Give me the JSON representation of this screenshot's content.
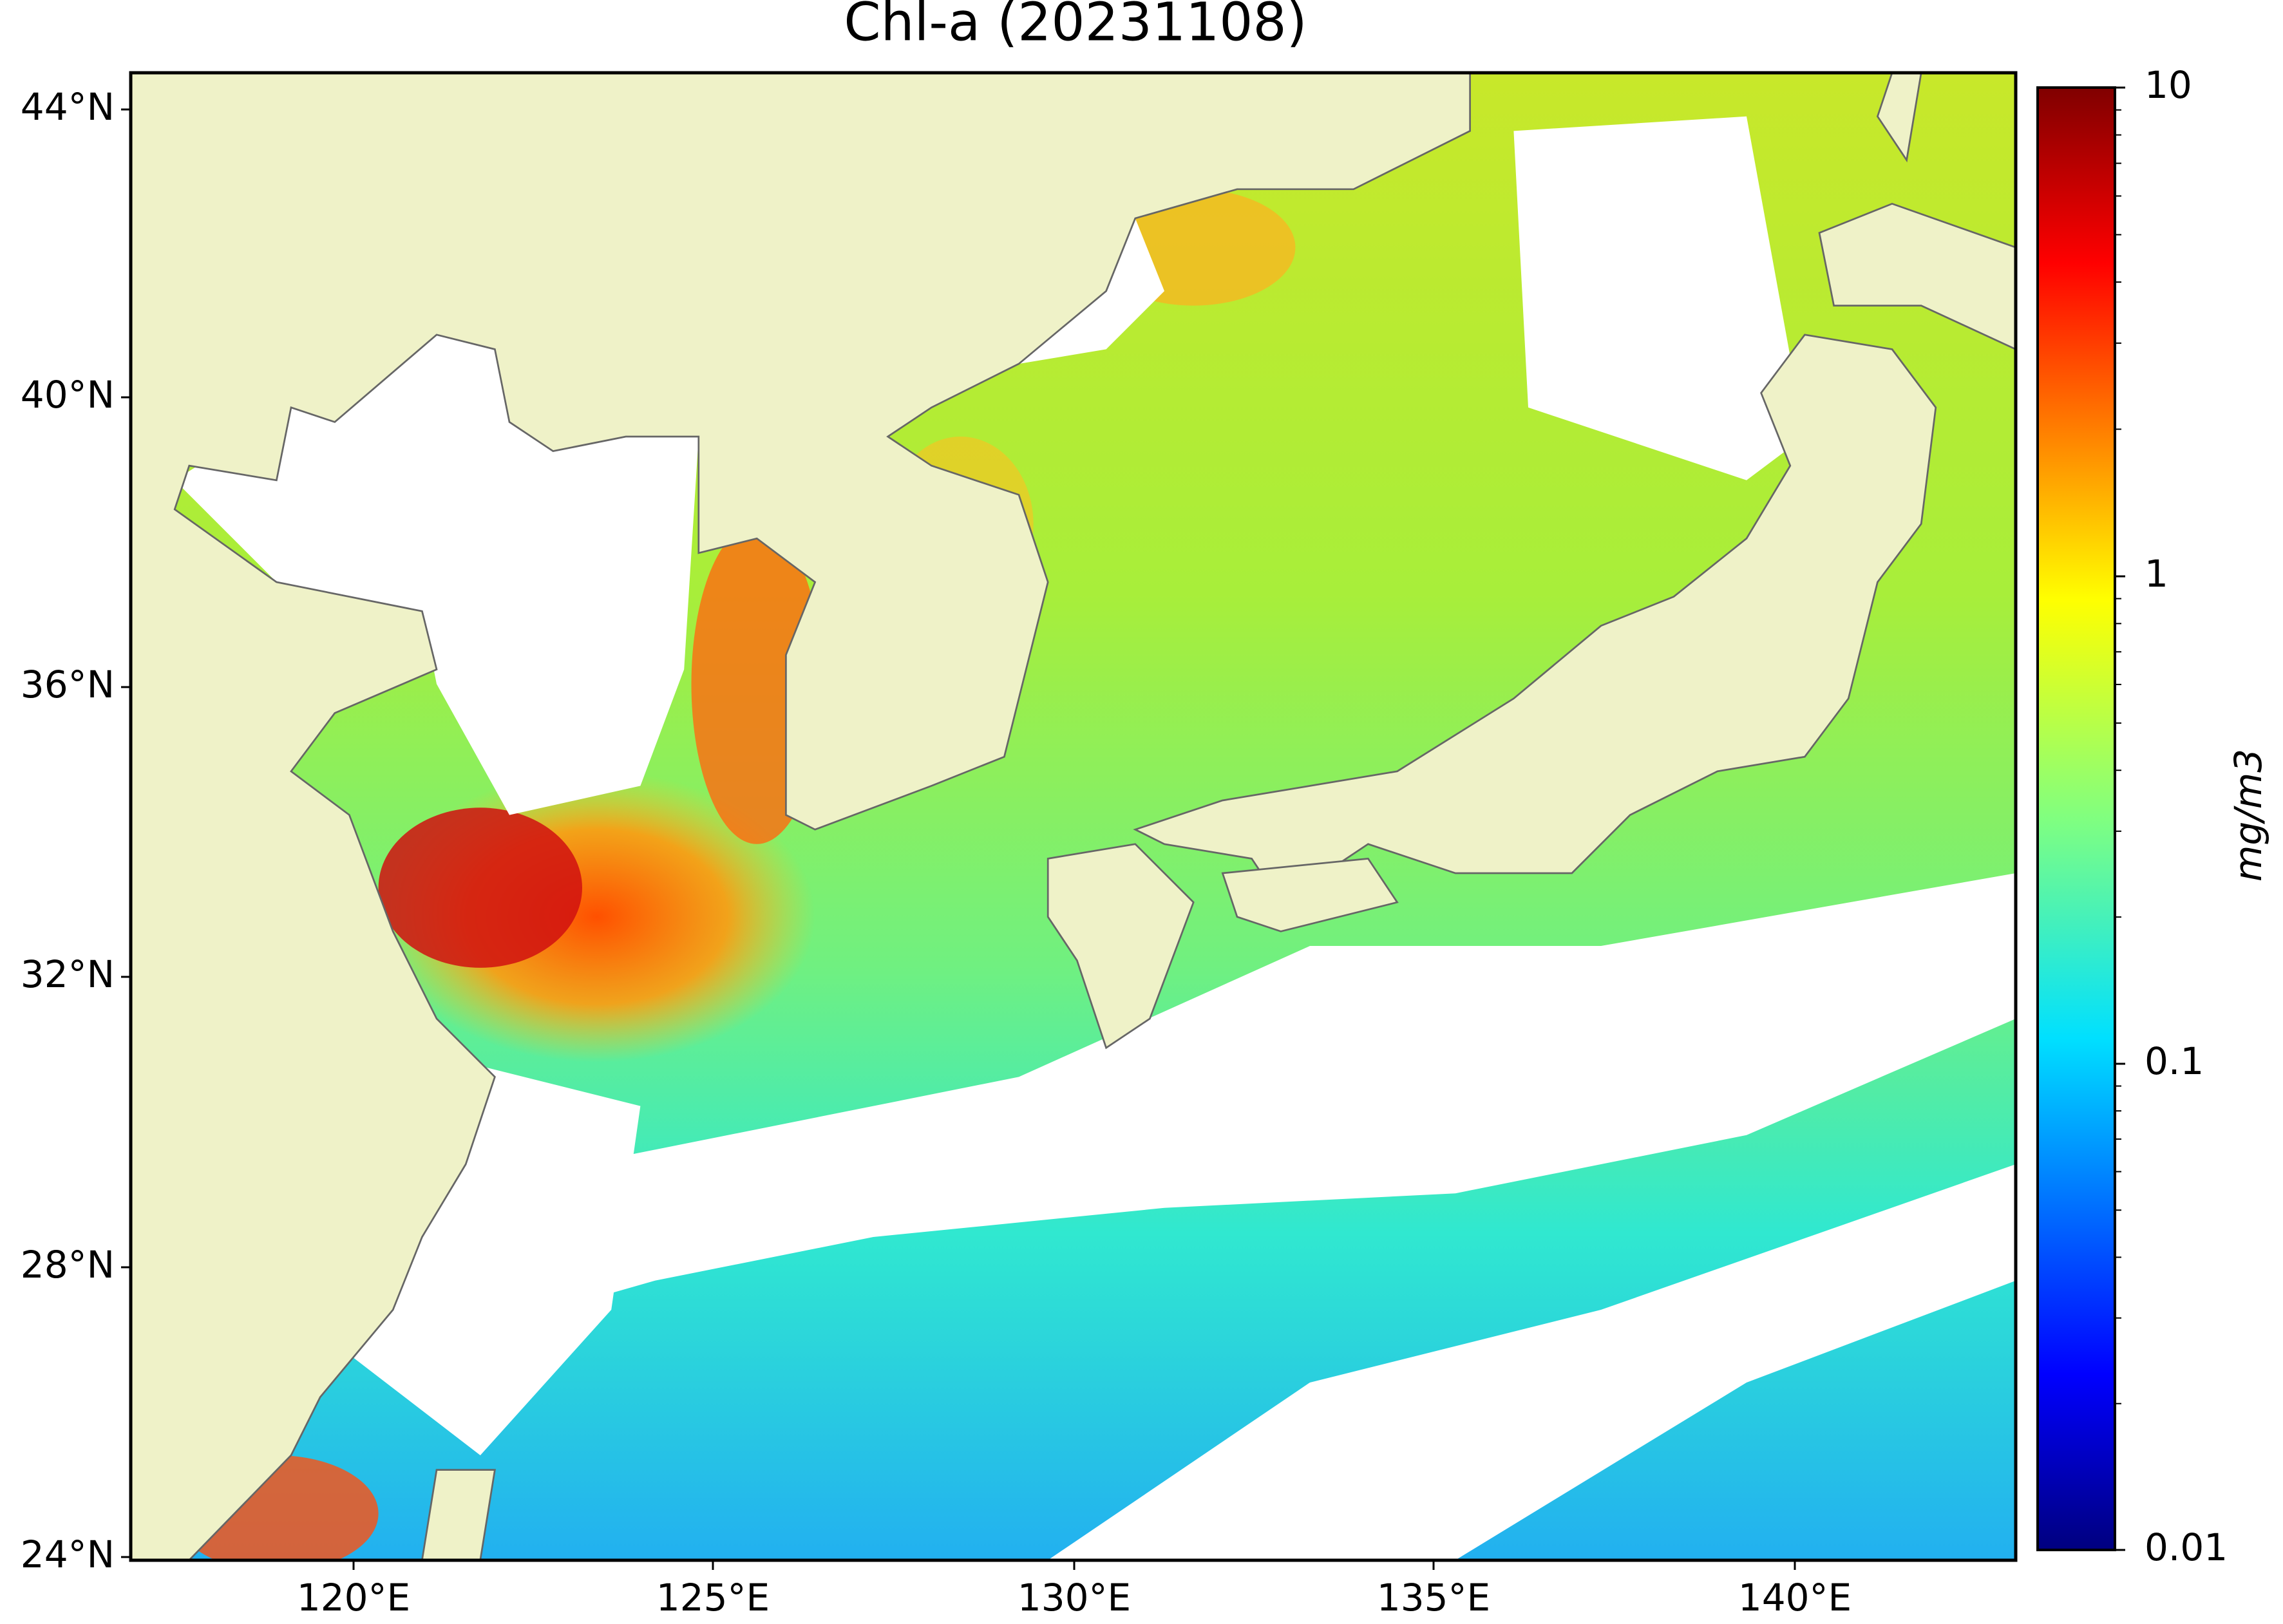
{
  "title": "Chl-a (20231108)",
  "lat_ticks": [
    "44°N",
    "40°N",
    "36°N",
    "32°N",
    "28°N",
    "24°N"
  ],
  "lon_ticks": [
    "120°E",
    "125°E",
    "130°E",
    "135°E",
    "140°E"
  ],
  "colorbar": {
    "ticks": [
      "10",
      "1",
      "0.1",
      "0.01"
    ],
    "label": "mg/m3"
  }
}
